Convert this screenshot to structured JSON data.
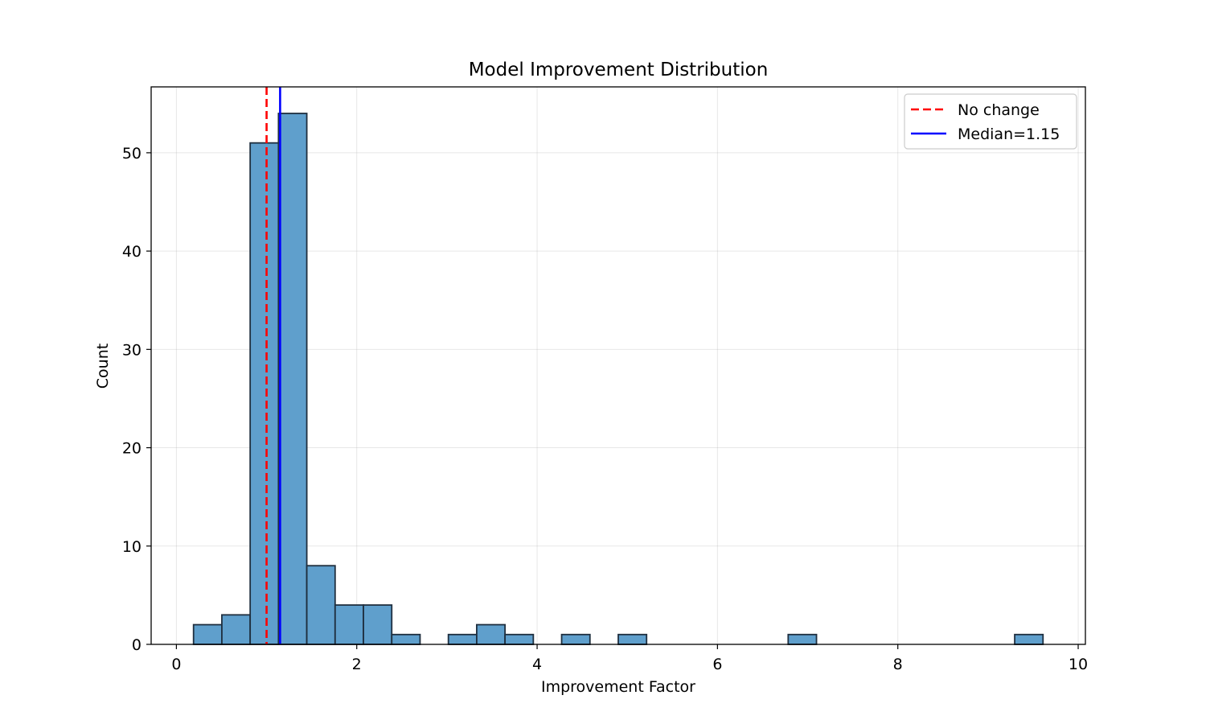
{
  "chart_data": {
    "type": "bar",
    "title": "Model Improvement Distribution",
    "xlabel": "Improvement Factor",
    "ylabel": "Count",
    "xlim": [
      -0.28,
      10.08
    ],
    "ylim": [
      0,
      56.7
    ],
    "xticks": [
      0,
      2,
      4,
      6,
      8,
      10
    ],
    "yticks": [
      0,
      10,
      20,
      30,
      40,
      50
    ],
    "grid": true,
    "bin_edges": [
      0.19,
      0.504,
      0.818,
      1.132,
      1.446,
      1.76,
      2.074,
      2.388,
      2.702,
      3.016,
      3.33,
      3.644,
      3.958,
      4.272,
      4.586,
      4.9,
      5.214,
      5.528,
      5.842,
      6.156,
      6.47,
      6.784,
      7.098,
      7.412,
      7.726,
      8.04,
      8.354,
      8.668,
      8.982,
      9.296,
      9.61
    ],
    "counts": [
      2,
      3,
      51,
      54,
      8,
      4,
      4,
      1,
      0,
      1,
      2,
      1,
      0,
      1,
      0,
      1,
      0,
      0,
      0,
      0,
      0,
      1,
      0,
      0,
      0,
      0,
      0,
      0,
      0,
      1
    ],
    "bar_color": "#5f9fcc",
    "bar_edge_color": "#1f2f3f",
    "reference_lines": [
      {
        "name": "No change",
        "x": 1.0,
        "color": "#ff0000",
        "style": "dashed"
      },
      {
        "name": "Median=1.15",
        "x": 1.15,
        "color": "#0000ff",
        "style": "solid"
      }
    ],
    "legend_position": "top-right"
  }
}
